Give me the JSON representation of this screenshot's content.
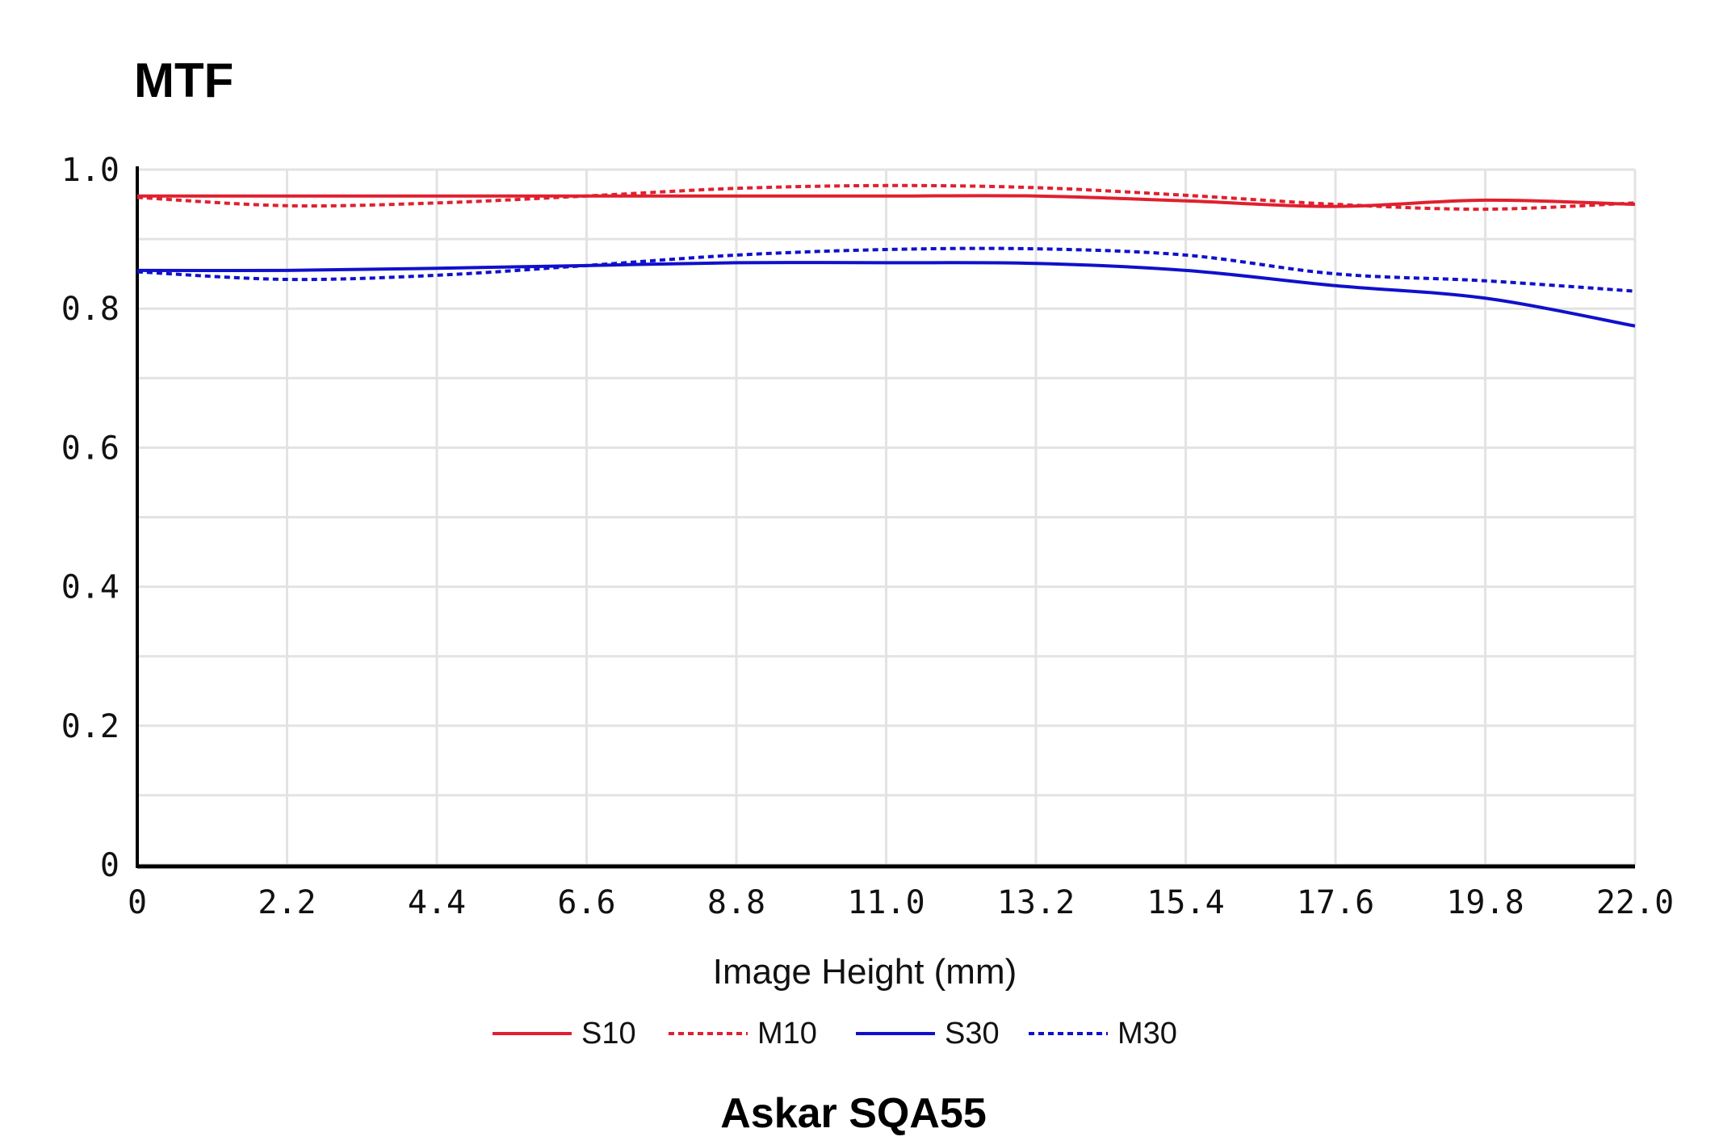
{
  "chart_data": {
    "type": "line",
    "title": "MTF",
    "caption": "Askar SQA55",
    "xlabel": "Image Height (mm)",
    "ylabel": "",
    "xlim": [
      0,
      22.0
    ],
    "ylim": [
      0,
      1.0
    ],
    "x_ticks": [
      "0",
      "2.2",
      "4.4",
      "6.6",
      "8.8",
      "11.0",
      "13.2",
      "15.4",
      "17.6",
      "19.8",
      "22.0"
    ],
    "y_ticks": [
      "0",
      "0.2",
      "0.4",
      "0.6",
      "0.8",
      "1.0"
    ],
    "grid": true,
    "legend_position": "bottom",
    "x": [
      0,
      2.2,
      4.4,
      6.6,
      8.8,
      11.0,
      13.2,
      15.4,
      17.6,
      19.8,
      22.0
    ],
    "series": [
      {
        "name": "S10",
        "color": "#e0202e",
        "style": "solid",
        "values": [
          0.962,
          0.962,
          0.962,
          0.962,
          0.962,
          0.962,
          0.962,
          0.955,
          0.947,
          0.956,
          0.95
        ]
      },
      {
        "name": "M10",
        "color": "#e0202e",
        "style": "dotted",
        "values": [
          0.96,
          0.948,
          0.952,
          0.962,
          0.973,
          0.977,
          0.974,
          0.963,
          0.95,
          0.943,
          0.952
        ]
      },
      {
        "name": "S30",
        "color": "#1010cc",
        "style": "solid",
        "values": [
          0.855,
          0.855,
          0.858,
          0.862,
          0.866,
          0.866,
          0.865,
          0.855,
          0.833,
          0.815,
          0.775
        ]
      },
      {
        "name": "M30",
        "color": "#1010cc",
        "style": "dotted",
        "values": [
          0.853,
          0.842,
          0.848,
          0.862,
          0.877,
          0.885,
          0.886,
          0.877,
          0.85,
          0.84,
          0.825
        ]
      }
    ]
  }
}
